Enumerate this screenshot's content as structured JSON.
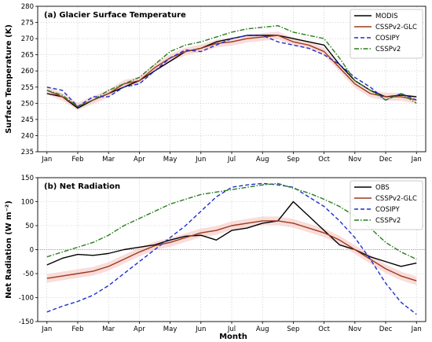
{
  "xlabel": "Month",
  "months": [
    "Jan",
    "Feb",
    "Mar",
    "Apr",
    "May",
    "Jun",
    "Jul",
    "Aug",
    "Sep",
    "Oct",
    "Nov",
    "Dec",
    "Jan"
  ],
  "colors": {
    "black": "#000000",
    "brown": "#a0391b",
    "blue": "#1f2fd0",
    "green": "#2a7d1e",
    "band": "#f4c7c3"
  },
  "chart_data": [
    {
      "type": "line",
      "title": "(a) Glacier Surface Temperature",
      "ylabel": "Surface Temperature (K)",
      "ylim": [
        235,
        280
      ],
      "yticks": [
        235,
        240,
        245,
        250,
        255,
        260,
        265,
        270,
        275,
        280
      ],
      "xlim": [
        -0.3,
        12.3
      ],
      "grid": true,
      "legend_position": "top-right",
      "zero_line": false,
      "x": [
        0,
        0.5,
        1,
        1.5,
        2,
        2.5,
        3,
        3.5,
        4,
        4.5,
        5,
        5.5,
        6,
        6.5,
        7,
        7.5,
        8,
        8.5,
        9,
        9.5,
        10,
        10.5,
        11,
        11.5,
        12
      ],
      "series": [
        {
          "name": "MODIS",
          "color": "black",
          "dash": "solid",
          "values": [
            253,
            252,
            248.5,
            251,
            253,
            255,
            257,
            260,
            263,
            266,
            267,
            269,
            270,
            271,
            271,
            271,
            270,
            269,
            268,
            262,
            257,
            254,
            252,
            252.5,
            252
          ]
        },
        {
          "name": "CSSPv2-GLC",
          "color": "brown",
          "dash": "solid",
          "values": [
            254,
            252,
            249,
            251,
            253,
            256,
            257,
            261,
            264,
            266,
            267,
            268.5,
            269,
            270,
            270.5,
            271,
            269,
            268,
            266,
            261,
            256,
            253,
            252,
            252,
            251
          ]
        },
        {
          "name": "COSIPY",
          "color": "blue",
          "dash": "dash",
          "values": [
            255,
            254,
            249,
            252,
            252,
            255,
            256,
            260,
            264,
            266.5,
            266,
            268,
            270,
            271,
            271,
            269,
            268,
            267,
            265,
            262,
            258,
            255,
            251,
            253,
            251
          ]
        },
        {
          "name": "CSSPv2",
          "color": "green",
          "dash": "dashdot",
          "values": [
            254,
            252.5,
            249,
            251,
            254,
            256,
            258,
            262,
            266,
            268,
            269,
            270.5,
            272,
            273,
            273.5,
            274,
            272,
            271,
            270,
            264,
            257,
            254,
            251,
            253,
            250
          ]
        }
      ]
    },
    {
      "type": "line",
      "title": "(b) Net Radiation",
      "ylabel": "Net Radiation (W m⁻²)",
      "ylim": [
        -150,
        150
      ],
      "yticks": [
        -150,
        -100,
        -50,
        0,
        50,
        100,
        150
      ],
      "xlim": [
        -0.3,
        12.3
      ],
      "grid": true,
      "legend_position": "top-right",
      "zero_line": true,
      "x": [
        0,
        0.5,
        1,
        1.5,
        2,
        2.5,
        3,
        3.5,
        4,
        4.5,
        5,
        5.5,
        6,
        6.5,
        7,
        7.5,
        8,
        8.5,
        9,
        9.5,
        10,
        10.5,
        11,
        11.5,
        12
      ],
      "series": [
        {
          "name": "OBS",
          "color": "black",
          "dash": "solid",
          "values": [
            -32,
            -18,
            -10,
            -12,
            -8,
            0,
            5,
            10,
            20,
            28,
            30,
            20,
            40,
            45,
            55,
            60,
            100,
            70,
            40,
            10,
            0,
            -15,
            -25,
            -35,
            -28
          ]
        },
        {
          "name": "CSSPv2-GLC",
          "color": "brown",
          "dash": "solid",
          "values": [
            -60,
            -55,
            -50,
            -45,
            -35,
            -20,
            -5,
            8,
            15,
            25,
            35,
            40,
            50,
            55,
            60,
            60,
            55,
            45,
            35,
            20,
            0,
            -20,
            -40,
            -55,
            -65
          ]
        },
        {
          "name": "COSIPY",
          "color": "blue",
          "dash": "dash",
          "values": [
            -130,
            -118,
            -108,
            -95,
            -75,
            -50,
            -25,
            0,
            25,
            50,
            80,
            110,
            130,
            135,
            138,
            135,
            130,
            110,
            90,
            60,
            25,
            -20,
            -70,
            -110,
            -135
          ]
        },
        {
          "name": "CSSPv2",
          "color": "green",
          "dash": "dashdot",
          "values": [
            -15,
            -5,
            5,
            15,
            30,
            50,
            65,
            80,
            95,
            105,
            115,
            120,
            125,
            130,
            135,
            138,
            128,
            118,
            105,
            90,
            70,
            45,
            15,
            -5,
            -20
          ]
        }
      ]
    }
  ]
}
